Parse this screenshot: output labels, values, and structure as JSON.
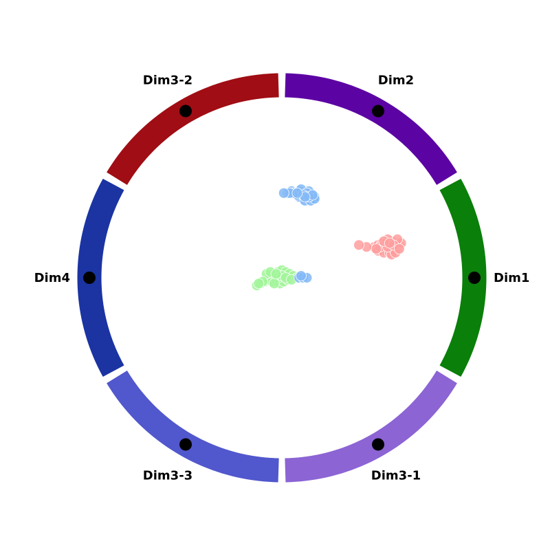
{
  "chart_data": {
    "type": "scatter",
    "subtype": "radviz",
    "title": "",
    "anchors": [
      {
        "name": "Dim1",
        "angle_deg": 0,
        "color": "#0a7f0a"
      },
      {
        "name": "Dim2",
        "angle_deg": 60,
        "color": "#5c03a3"
      },
      {
        "name": "Dim3-2",
        "angle_deg": 120,
        "color": "#a00d14"
      },
      {
        "name": "Dim4",
        "angle_deg": 180,
        "color": "#1b34a2"
      },
      {
        "name": "Dim3-3",
        "angle_deg": 240,
        "color": "#5157cc"
      },
      {
        "name": "Dim3-1",
        "angle_deg": 300,
        "color": "#8c64d4"
      }
    ],
    "xlim": [
      -1,
      1
    ],
    "ylim": [
      -1,
      1
    ],
    "grid": false,
    "legend": "none",
    "series": [
      {
        "color": "#ff9e9e",
        "points": [
          [
            0.48,
            0.16
          ],
          [
            0.5,
            0.17
          ],
          [
            0.52,
            0.18
          ],
          [
            0.53,
            0.16
          ],
          [
            0.55,
            0.17
          ],
          [
            0.56,
            0.15
          ],
          [
            0.54,
            0.14
          ],
          [
            0.58,
            0.16
          ],
          [
            0.59,
            0.18
          ],
          [
            0.6,
            0.15
          ],
          [
            0.57,
            0.19
          ],
          [
            0.55,
            0.2
          ],
          [
            0.52,
            0.15
          ],
          [
            0.5,
            0.14
          ],
          [
            0.53,
            0.13
          ],
          [
            0.56,
            0.13
          ],
          [
            0.58,
            0.14
          ],
          [
            0.61,
            0.17
          ],
          [
            0.62,
            0.18
          ],
          [
            0.6,
            0.2
          ],
          [
            0.57,
            0.12
          ],
          [
            0.54,
            0.18
          ],
          [
            0.51,
            0.16
          ],
          [
            0.49,
            0.15
          ],
          [
            0.59,
            0.13
          ],
          [
            0.55,
            0.16
          ],
          [
            0.53,
            0.19
          ],
          [
            0.58,
            0.17
          ],
          [
            0.56,
            0.18
          ],
          [
            0.61,
            0.15
          ],
          [
            0.44,
            0.16
          ],
          [
            0.4,
            0.17
          ]
        ]
      },
      {
        "color": "#82b8f7",
        "points": [
          [
            0.03,
            0.44
          ],
          [
            0.05,
            0.45
          ],
          [
            0.07,
            0.44
          ],
          [
            0.09,
            0.45
          ],
          [
            0.1,
            0.43
          ],
          [
            0.12,
            0.44
          ],
          [
            0.13,
            0.42
          ],
          [
            0.15,
            0.43
          ],
          [
            0.16,
            0.41
          ],
          [
            0.17,
            0.42
          ],
          [
            0.14,
            0.45
          ],
          [
            0.11,
            0.41
          ],
          [
            0.09,
            0.42
          ],
          [
            0.08,
            0.43
          ],
          [
            0.12,
            0.4
          ],
          [
            0.15,
            0.4
          ],
          [
            0.17,
            0.41
          ],
          [
            0.06,
            0.44
          ],
          [
            0.1,
            0.46
          ],
          [
            0.13,
            0.44
          ],
          [
            0.11,
            0.43
          ],
          [
            0.14,
            0.42
          ],
          [
            0.04,
            0.44
          ],
          [
            0.16,
            0.43
          ],
          [
            0.01,
            0.44
          ],
          [
            0.12,
            0.42
          ],
          [
            0.08,
            0.44
          ]
        ]
      },
      {
        "color": "#a2f59a",
        "points": [
          [
            -0.13,
            -0.04
          ],
          [
            -0.11,
            -0.03
          ],
          [
            -0.09,
            -0.02
          ],
          [
            -0.07,
            -0.01
          ],
          [
            -0.06,
            0.01
          ],
          [
            -0.04,
            0.02
          ],
          [
            -0.02,
            0.03
          ],
          [
            0.0,
            0.04
          ],
          [
            0.02,
            0.03
          ],
          [
            0.04,
            0.02
          ],
          [
            -0.05,
            -0.02
          ],
          [
            -0.03,
            -0.01
          ],
          [
            -0.01,
            -0.03
          ],
          [
            0.01,
            -0.02
          ],
          [
            0.03,
            -0.01
          ],
          [
            -0.08,
            0.02
          ],
          [
            -0.06,
            0.03
          ],
          [
            -0.02,
            0.0
          ],
          [
            0.0,
            0.01
          ],
          [
            0.06,
            0.01
          ],
          [
            -0.04,
            -0.03
          ],
          [
            -0.1,
            -0.02
          ],
          [
            0.02,
            0.0
          ],
          [
            0.08,
            0.0
          ],
          [
            -0.12,
            -0.03
          ],
          [
            -0.03,
            0.02
          ],
          [
            0.05,
            -0.01
          ]
        ]
      },
      {
        "color": "#82b8f7",
        "points": [
          [
            0.09,
            0.0
          ],
          [
            0.11,
            0.0
          ],
          [
            0.13,
            0.0
          ],
          [
            0.1,
            0.01
          ]
        ]
      }
    ]
  }
}
